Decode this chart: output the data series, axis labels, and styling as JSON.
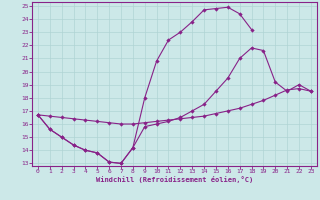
{
  "xlabel": "Windchill (Refroidissement éolien,°C)",
  "xlim_min": -0.5,
  "xlim_max": 23.5,
  "ylim_min": 12.8,
  "ylim_max": 25.3,
  "xticks": [
    0,
    1,
    2,
    3,
    4,
    5,
    6,
    7,
    8,
    9,
    10,
    11,
    12,
    13,
    14,
    15,
    16,
    17,
    18,
    19,
    20,
    21,
    22,
    23
  ],
  "yticks": [
    13,
    14,
    15,
    16,
    17,
    18,
    19,
    20,
    21,
    22,
    23,
    24,
    25
  ],
  "bg_color": "#cce8e8",
  "grid_color": "#b0d4d4",
  "line_color": "#882288",
  "curve1_x": [
    0,
    1,
    2,
    3,
    4,
    5,
    6,
    7,
    8,
    9,
    10,
    11,
    12,
    13,
    14,
    15,
    16,
    17,
    18,
    19,
    20,
    21,
    22,
    23
  ],
  "curve1_y": [
    16.7,
    15.6,
    15.0,
    14.4,
    14.0,
    13.8,
    13.1,
    13.0,
    14.2,
    15.8,
    16.0,
    16.2,
    16.5,
    17.0,
    17.5,
    18.5,
    19.5,
    21.0,
    21.8,
    21.6,
    19.2,
    18.5,
    19.0,
    18.5
  ],
  "curve2_x": [
    0,
    1,
    2,
    3,
    4,
    5,
    6,
    7,
    8,
    9,
    10,
    11,
    12,
    13,
    14,
    15,
    16,
    17,
    18
  ],
  "curve2_y": [
    16.7,
    15.6,
    15.0,
    14.4,
    14.0,
    13.8,
    13.1,
    13.0,
    14.2,
    18.0,
    20.8,
    22.4,
    23.0,
    23.8,
    24.7,
    24.8,
    24.9,
    24.4,
    23.2
  ],
  "curve3_x": [
    0,
    1,
    2,
    3,
    4,
    5,
    6,
    7,
    8,
    9,
    10,
    11,
    12,
    13,
    14,
    15,
    16,
    17,
    18,
    19,
    20,
    21,
    22,
    23
  ],
  "curve3_y": [
    16.7,
    16.6,
    16.5,
    16.4,
    16.3,
    16.2,
    16.1,
    16.0,
    16.0,
    16.1,
    16.2,
    16.3,
    16.4,
    16.5,
    16.6,
    16.8,
    17.0,
    17.2,
    17.5,
    17.8,
    18.2,
    18.6,
    18.7,
    18.5
  ]
}
